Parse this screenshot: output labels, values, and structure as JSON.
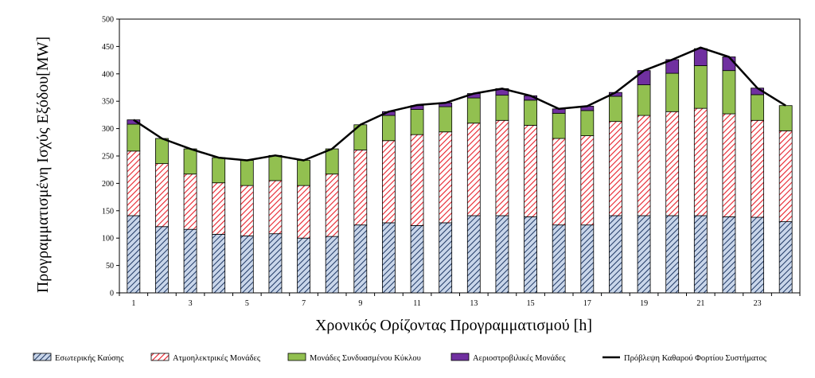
{
  "chart_data": {
    "type": "bar",
    "stacked": true,
    "xlabel": "Χρονικός Ορίζοντας Προγραμματισμού [h]",
    "ylabel": "Προγραμματισμένη Ισχύς Εξόδου[MW]",
    "ylim": [
      0,
      500
    ],
    "yticks": [
      0,
      50,
      100,
      150,
      200,
      250,
      300,
      350,
      400,
      450,
      500
    ],
    "x": [
      1,
      2,
      3,
      4,
      5,
      6,
      7,
      8,
      9,
      10,
      11,
      12,
      13,
      14,
      15,
      16,
      17,
      18,
      19,
      20,
      21,
      22,
      23,
      24
    ],
    "xtick_labels": [
      "1",
      "3",
      "5",
      "7",
      "9",
      "11",
      "13",
      "15",
      "17",
      "19",
      "21",
      "23"
    ],
    "grid": false,
    "legend_position": "bottom",
    "series": [
      {
        "name": "Εσωτερικής Καύσης",
        "kind": "bar",
        "color": "#c9d6ea",
        "hatch": "#1f3864",
        "values": [
          141,
          121,
          116,
          107,
          104,
          108,
          100,
          103,
          124,
          128,
          123,
          128,
          141,
          141,
          139,
          124,
          124,
          141,
          141,
          141,
          141,
          139,
          138,
          130
        ]
      },
      {
        "name": "Ατμοηλεκτρικές Μονάδες",
        "kind": "bar",
        "color": "#ffffff",
        "hatch": "#e8202a",
        "values": [
          118,
          115,
          101,
          94,
          92,
          97,
          96,
          114,
          137,
          150,
          166,
          166,
          169,
          174,
          167,
          158,
          163,
          172,
          183,
          190,
          196,
          188,
          177,
          166
        ]
      },
      {
        "name": "Μονάδες Συνδυασμένου Κύκλου",
        "kind": "bar",
        "color": "#92c050",
        "values": [
          49,
          46,
          46,
          46,
          46,
          46,
          46,
          46,
          46,
          46,
          46,
          46,
          46,
          46,
          46,
          46,
          46,
          46,
          56,
          70,
          78,
          79,
          47,
          46
        ]
      },
      {
        "name": "Αεριοστροβιλικές Μονάδες",
        "kind": "bar",
        "color": "#7030a0",
        "values": [
          8,
          0,
          0,
          0,
          0,
          0,
          0,
          0,
          0,
          7,
          7,
          7,
          8,
          12,
          8,
          8,
          8,
          7,
          26,
          25,
          31,
          25,
          12,
          0
        ]
      },
      {
        "name": "Πρόβλεψη Καθαρού Φορτίου Συστήματος",
        "kind": "line",
        "color": "#000000",
        "values": [
          316,
          282,
          263,
          247,
          242,
          251,
          242,
          263,
          307,
          331,
          343,
          347,
          364,
          373,
          360,
          336,
          341,
          366,
          406,
          426,
          448,
          431,
          374,
          342
        ]
      }
    ]
  }
}
